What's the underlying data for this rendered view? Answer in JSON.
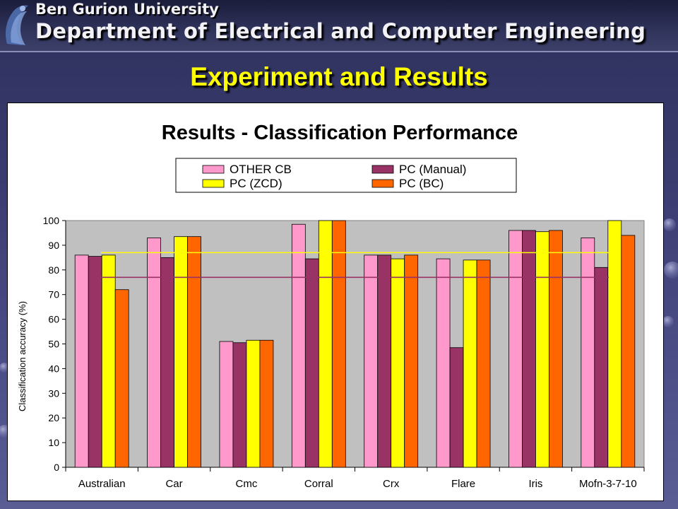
{
  "header": {
    "university": "Ben Gurion University",
    "department": "Department of  Electrical and Computer Engineering"
  },
  "slide_title": "Experiment and Results",
  "chart_data": {
    "type": "bar",
    "title": "Results - Classification Performance",
    "ylabel": "Classification accuracy (%)",
    "xlabel": "",
    "ylim": [
      0,
      100
    ],
    "yticks": [
      0,
      10,
      20,
      30,
      40,
      50,
      60,
      70,
      80,
      90,
      100
    ],
    "categories": [
      "Australian",
      "Car",
      "Cmc",
      "Corral",
      "Crx",
      "Flare",
      "Iris",
      "Mofn-3-7-10"
    ],
    "series": [
      {
        "name": "OTHER CB",
        "color": "#ff99cc",
        "values": [
          86,
          93,
          51,
          98.5,
          86,
          84.5,
          96,
          93
        ]
      },
      {
        "name": "PC (Manual)",
        "color": "#993366",
        "values": [
          85.5,
          85,
          50.5,
          84.5,
          86,
          48.5,
          96,
          81
        ]
      },
      {
        "name": "PC (ZCD)",
        "color": "#ffff00",
        "values": [
          86,
          93.5,
          51.5,
          100,
          84.5,
          84,
          95.5,
          100
        ]
      },
      {
        "name": "PC (BC)",
        "color": "#ff6600",
        "values": [
          72,
          93.5,
          51.5,
          100,
          86,
          84,
          96,
          94
        ]
      }
    ],
    "reference_lines": [
      {
        "value": 87,
        "color": "#ffff00"
      },
      {
        "value": 77,
        "color": "#993366"
      }
    ],
    "grid": false,
    "plot_background": "#c0c0c0",
    "legend_position": "top-center"
  }
}
